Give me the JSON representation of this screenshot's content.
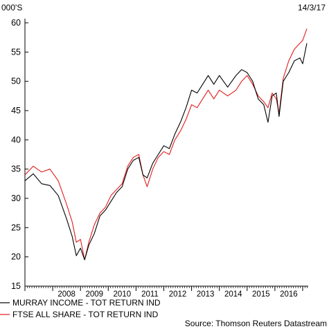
{
  "chart_data": {
    "type": "line",
    "unit_label": "000'S",
    "date_label": "14/3/17",
    "source": "Source: Thomson Reuters Datastream",
    "xlim": [
      2007.0,
      2017.2
    ],
    "ylim": [
      15,
      60
    ],
    "y_ticks": [
      15,
      20,
      25,
      30,
      35,
      40,
      45,
      50,
      55,
      60
    ],
    "x_ticks": [
      {
        "label": "2008",
        "value": 2008.5
      },
      {
        "label": "2009",
        "value": 2009.5
      },
      {
        "label": "2010",
        "value": 2010.5
      },
      {
        "label": "2011",
        "value": 2011.5
      },
      {
        "label": "2012",
        "value": 2012.5
      },
      {
        "label": "2013",
        "value": 2013.5
      },
      {
        "label": "2014",
        "value": 2014.5
      },
      {
        "label": "2015",
        "value": 2015.5
      },
      {
        "label": "2016",
        "value": 2016.5
      }
    ],
    "series": [
      {
        "name": "MURRAY INCOME - TOT RETURN IND",
        "color": "#000000",
        "points": [
          [
            2007.0,
            33.0
          ],
          [
            2007.3,
            34.2
          ],
          [
            2007.6,
            32.5
          ],
          [
            2007.9,
            32.2
          ],
          [
            2008.2,
            30.5
          ],
          [
            2008.5,
            26.5
          ],
          [
            2008.7,
            23.5
          ],
          [
            2008.85,
            20.2
          ],
          [
            2009.0,
            21.5
          ],
          [
            2009.15,
            19.5
          ],
          [
            2009.3,
            22.0
          ],
          [
            2009.5,
            24.0
          ],
          [
            2009.7,
            27.0
          ],
          [
            2009.9,
            28.0
          ],
          [
            2010.1,
            29.5
          ],
          [
            2010.3,
            31.0
          ],
          [
            2010.5,
            32.0
          ],
          [
            2010.7,
            35.0
          ],
          [
            2010.9,
            36.5
          ],
          [
            2011.1,
            37.0
          ],
          [
            2011.25,
            34.0
          ],
          [
            2011.4,
            33.5
          ],
          [
            2011.6,
            36.0
          ],
          [
            2011.8,
            37.5
          ],
          [
            2012.0,
            39.0
          ],
          [
            2012.2,
            38.5
          ],
          [
            2012.4,
            41.0
          ],
          [
            2012.6,
            43.0
          ],
          [
            2012.8,
            45.5
          ],
          [
            2013.0,
            48.5
          ],
          [
            2013.2,
            48.0
          ],
          [
            2013.4,
            49.5
          ],
          [
            2013.6,
            51.0
          ],
          [
            2013.8,
            49.5
          ],
          [
            2014.0,
            51.0
          ],
          [
            2014.3,
            49.0
          ],
          [
            2014.6,
            51.0
          ],
          [
            2014.8,
            52.0
          ],
          [
            2015.0,
            51.5
          ],
          [
            2015.2,
            50.0
          ],
          [
            2015.4,
            47.0
          ],
          [
            2015.6,
            46.0
          ],
          [
            2015.75,
            43.0
          ],
          [
            2015.9,
            47.5
          ],
          [
            2016.05,
            48.0
          ],
          [
            2016.15,
            44.0
          ],
          [
            2016.3,
            50.0
          ],
          [
            2016.5,
            51.5
          ],
          [
            2016.7,
            53.5
          ],
          [
            2016.9,
            54.0
          ],
          [
            2017.0,
            53.0
          ],
          [
            2017.15,
            56.5
          ]
        ]
      },
      {
        "name": "FTSE ALL SHARE - TOT RETURN IND",
        "color": "#e31a1c",
        "points": [
          [
            2007.0,
            34.0
          ],
          [
            2007.3,
            35.5
          ],
          [
            2007.6,
            34.5
          ],
          [
            2007.9,
            35.0
          ],
          [
            2008.2,
            33.0
          ],
          [
            2008.5,
            29.0
          ],
          [
            2008.7,
            26.0
          ],
          [
            2008.85,
            22.5
          ],
          [
            2009.0,
            23.0
          ],
          [
            2009.15,
            19.5
          ],
          [
            2009.3,
            22.5
          ],
          [
            2009.5,
            25.5
          ],
          [
            2009.7,
            27.5
          ],
          [
            2009.9,
            28.5
          ],
          [
            2010.1,
            30.5
          ],
          [
            2010.3,
            31.5
          ],
          [
            2010.5,
            32.5
          ],
          [
            2010.7,
            35.5
          ],
          [
            2010.9,
            37.0
          ],
          [
            2011.1,
            37.5
          ],
          [
            2011.25,
            34.0
          ],
          [
            2011.4,
            32.0
          ],
          [
            2011.6,
            35.0
          ],
          [
            2011.8,
            37.0
          ],
          [
            2012.0,
            38.0
          ],
          [
            2012.2,
            37.5
          ],
          [
            2012.4,
            40.0
          ],
          [
            2012.6,
            41.5
          ],
          [
            2012.8,
            43.5
          ],
          [
            2013.0,
            46.0
          ],
          [
            2013.2,
            45.5
          ],
          [
            2013.4,
            47.0
          ],
          [
            2013.6,
            48.5
          ],
          [
            2013.8,
            47.0
          ],
          [
            2014.0,
            48.5
          ],
          [
            2014.3,
            47.5
          ],
          [
            2014.6,
            48.5
          ],
          [
            2014.8,
            50.0
          ],
          [
            2015.0,
            51.0
          ],
          [
            2015.2,
            49.5
          ],
          [
            2015.4,
            47.5
          ],
          [
            2015.6,
            46.5
          ],
          [
            2015.75,
            45.5
          ],
          [
            2015.9,
            48.0
          ],
          [
            2016.05,
            47.0
          ],
          [
            2016.15,
            44.5
          ],
          [
            2016.3,
            50.5
          ],
          [
            2016.5,
            53.5
          ],
          [
            2016.7,
            55.5
          ],
          [
            2016.9,
            56.5
          ],
          [
            2017.0,
            57.0
          ],
          [
            2017.15,
            59.0
          ]
        ]
      }
    ]
  }
}
